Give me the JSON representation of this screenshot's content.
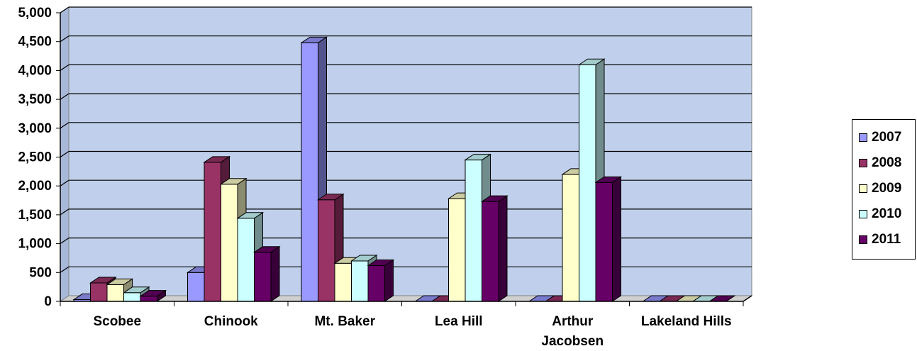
{
  "chart_data": {
    "type": "bar",
    "categories": [
      "Scobee",
      "Chinook",
      "Mt. Baker",
      "Lea Hill",
      "Arthur Jacobsen",
      "Lakeland Hills"
    ],
    "series": [
      {
        "name": "2007",
        "color": "#9999ff",
        "values": [
          30,
          500,
          4480,
          0,
          0,
          0
        ]
      },
      {
        "name": "2008",
        "color": "#993366",
        "values": [
          320,
          2410,
          1760,
          0,
          0,
          0
        ]
      },
      {
        "name": "2009",
        "color": "#ffffcc",
        "values": [
          290,
          2030,
          660,
          1780,
          2200,
          0
        ]
      },
      {
        "name": "2010",
        "color": "#ccffff",
        "values": [
          150,
          1440,
          700,
          2450,
          4100,
          0
        ]
      },
      {
        "name": "2011",
        "color": "#660066",
        "values": [
          90,
          850,
          620,
          1730,
          2060,
          0
        ]
      }
    ],
    "yticks": [
      "0",
      "500",
      "1,000",
      "1,500",
      "2,000",
      "2,500",
      "3,000",
      "3,500",
      "4,000",
      "4,500",
      "5,000"
    ],
    "ylim": [
      0,
      5000
    ],
    "grid": true,
    "legend": "right",
    "plot_background": "#c0d0ec"
  }
}
